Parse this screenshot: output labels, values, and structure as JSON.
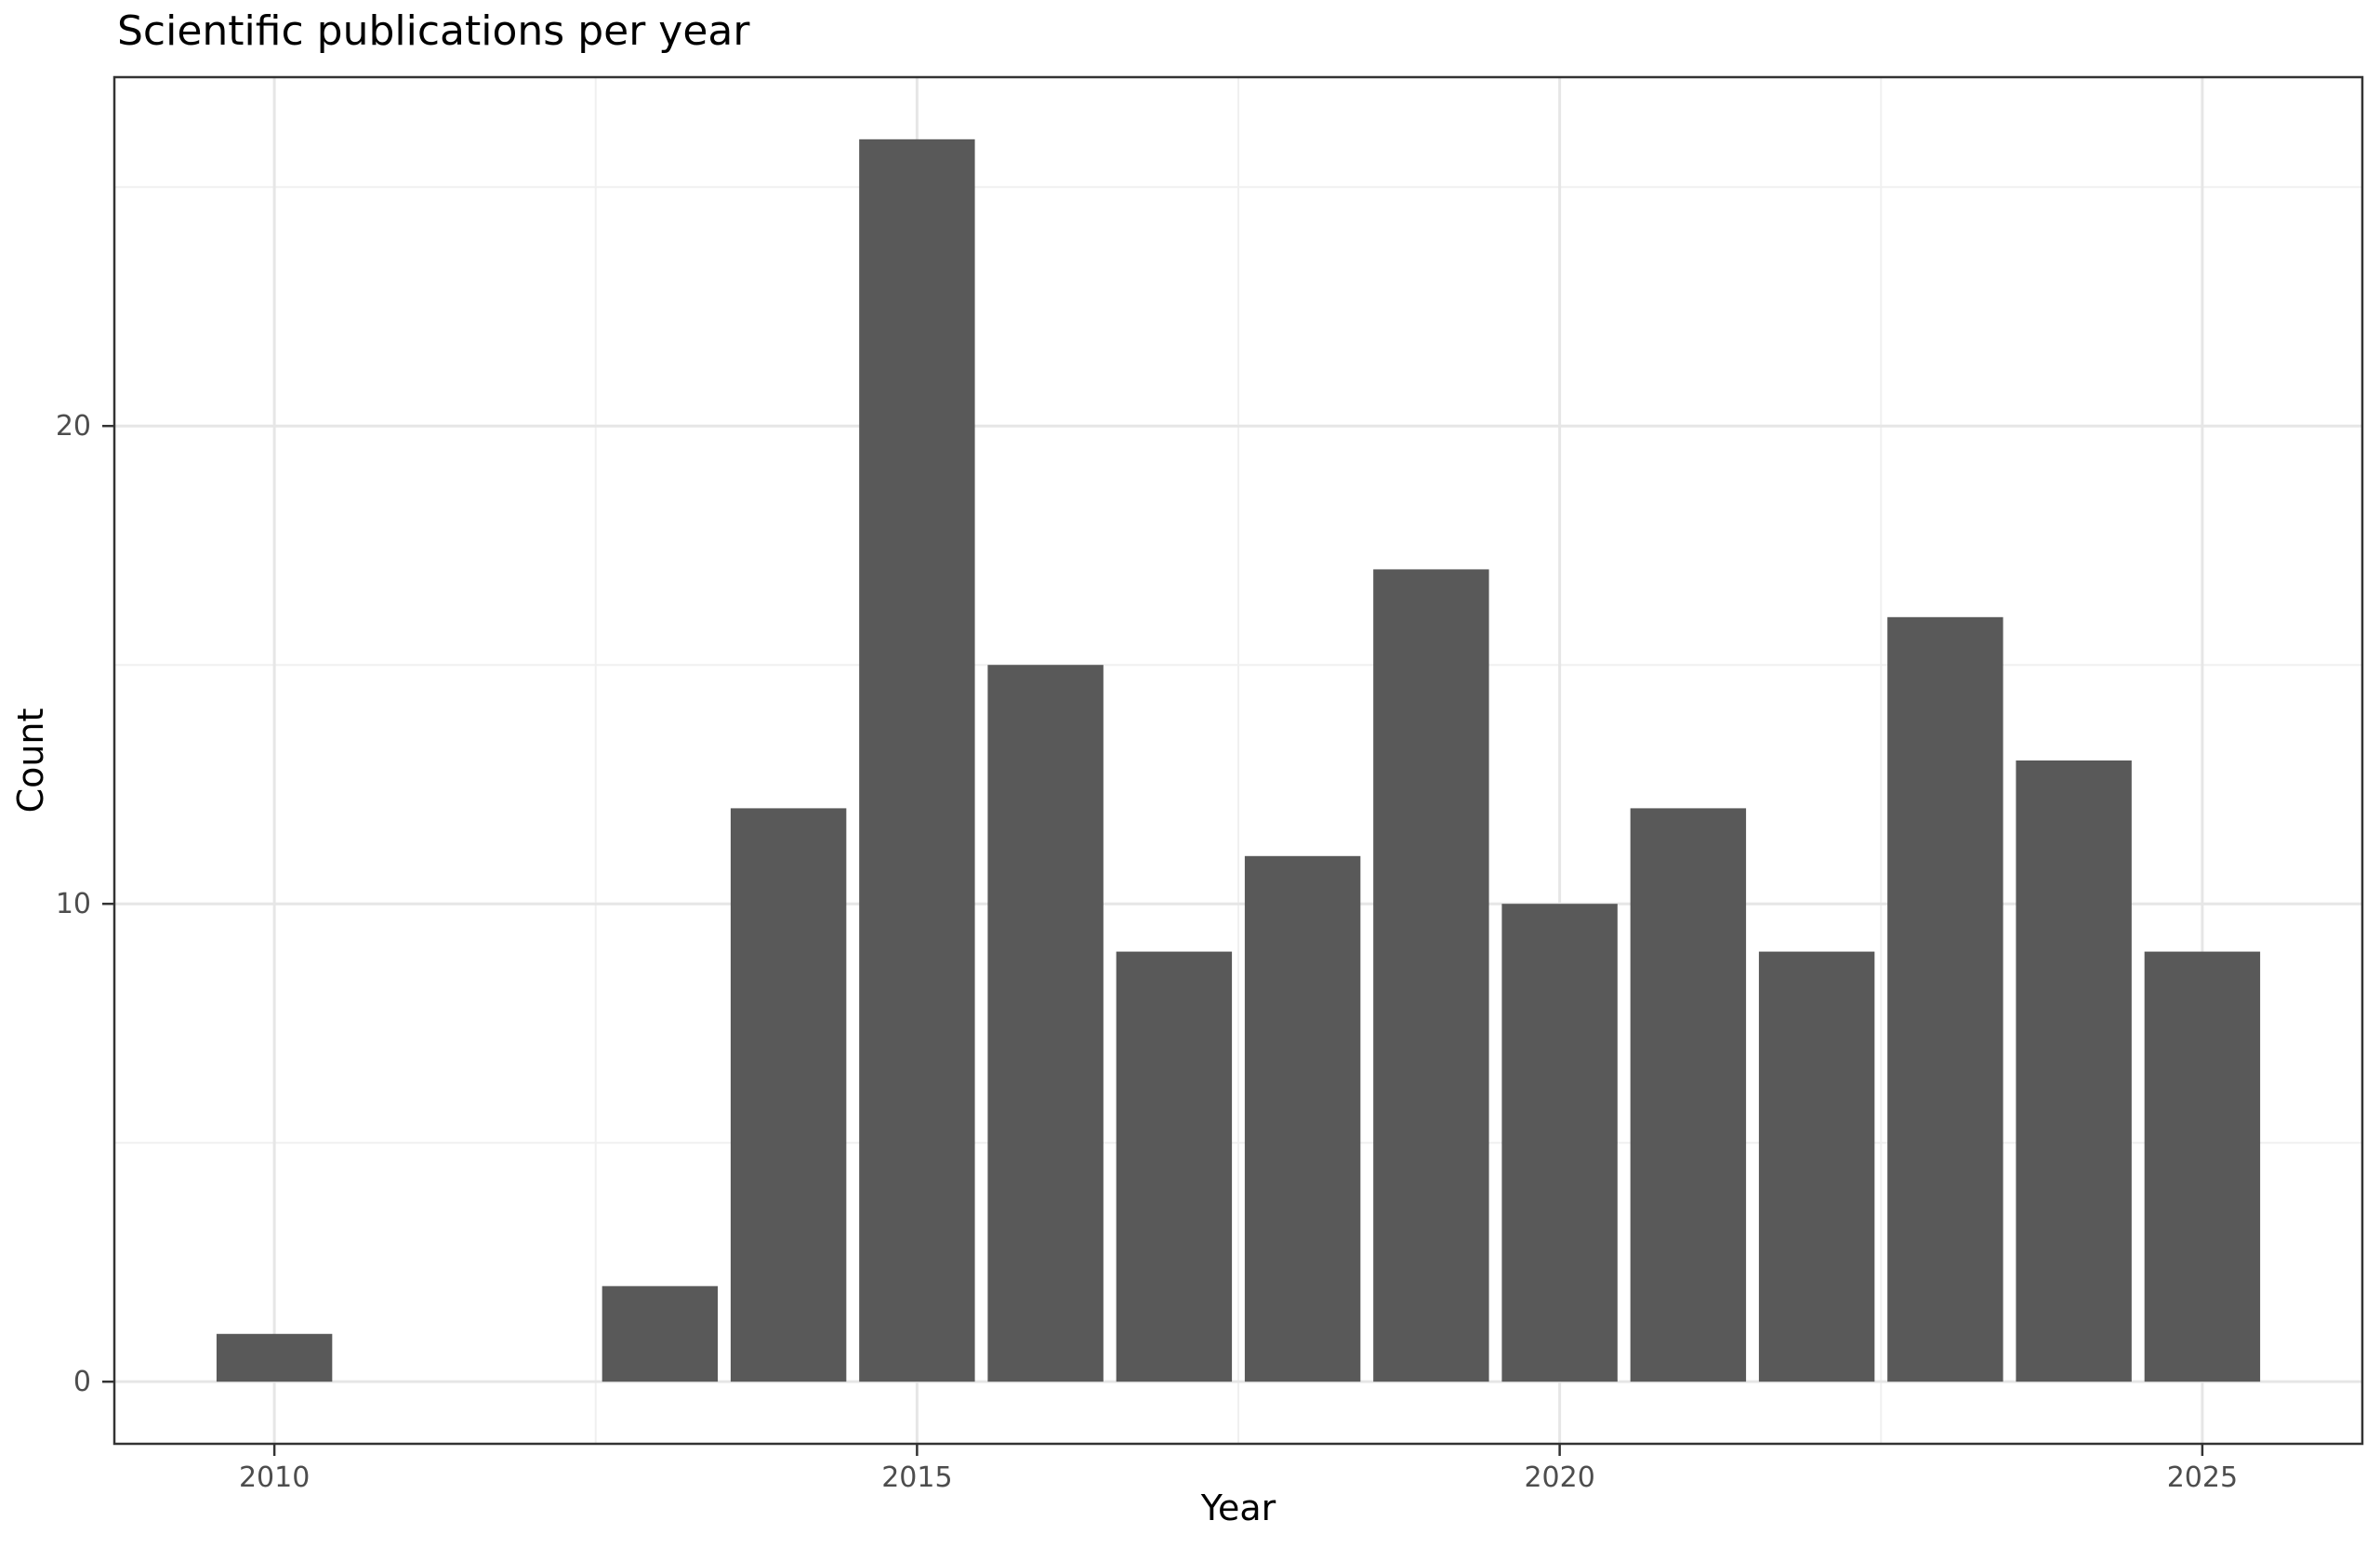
{
  "page": {
    "background": "#FFFFFF"
  },
  "chart_data": {
    "type": "bar",
    "title": "Scientific publications per year",
    "xlabel": "Year",
    "ylabel": "Count",
    "categories": [
      2010,
      2011,
      2012,
      2013,
      2014,
      2015,
      2016,
      2017,
      2018,
      2019,
      2020,
      2021,
      2022,
      2023,
      2024,
      2025
    ],
    "values": [
      1,
      0,
      0,
      2,
      12,
      26,
      15,
      9,
      11,
      17,
      10,
      12,
      9,
      16,
      13,
      9
    ],
    "bar_width": 0.9,
    "xlim": [
      2008.755,
      2026.245
    ],
    "ylim": [
      -1.3,
      27.3
    ],
    "x_major_ticks": [
      2010,
      2015,
      2020,
      2025
    ],
    "x_tick_labels": [
      "2010",
      "2015",
      "2020",
      "2025"
    ],
    "x_minor_gridlines": [
      2012.5,
      2017.5,
      2022.5
    ],
    "y_major_ticks": [
      0,
      10,
      20
    ],
    "y_tick_labels": [
      "0",
      "10",
      "20"
    ],
    "y_minor_gridlines": [
      5,
      15,
      25
    ],
    "grid": true,
    "legend": false,
    "colors": {
      "bar_fill": "#595959",
      "panel_background": "#FFFFFF",
      "panel_border": "#333333",
      "tick_mark": "#333333",
      "major_gridline": "#E6E6E6",
      "minor_gridline": "#F0F0F0",
      "tick_label": "#4D4D4D",
      "title_text": "#000000",
      "axis_title_text": "#000000"
    }
  }
}
